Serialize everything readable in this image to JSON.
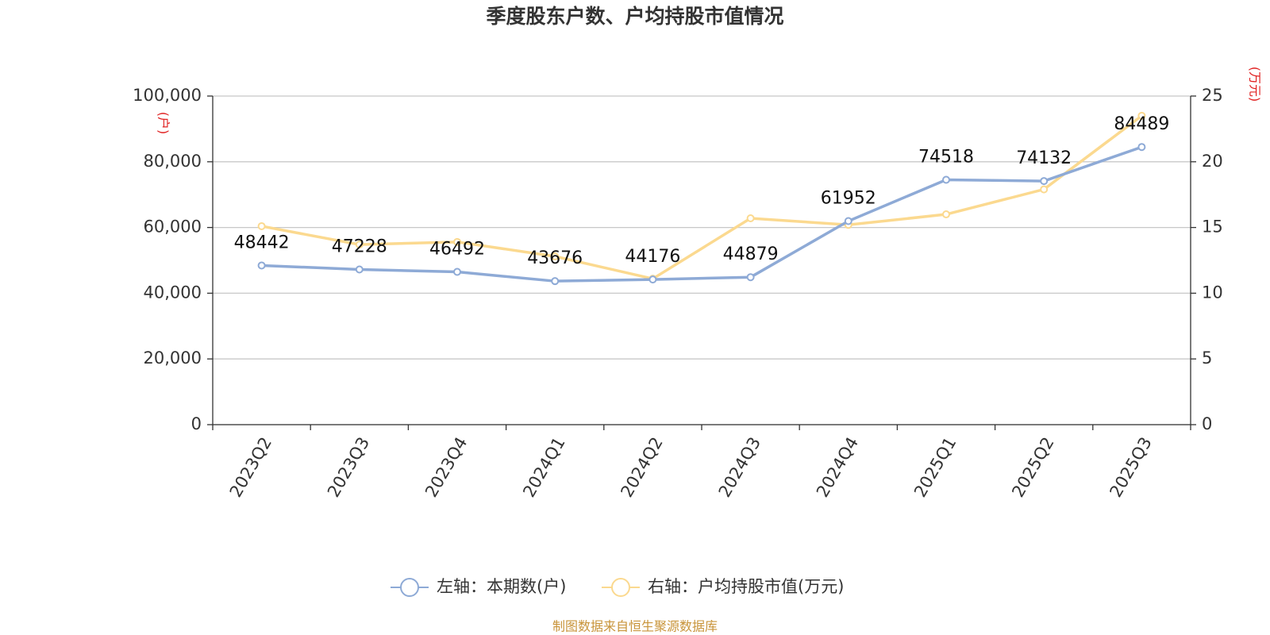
{
  "chart_data": {
    "type": "line",
    "title": "季度股东户数、户均持股市值情况",
    "categories": [
      "2023Q2",
      "2023Q3",
      "2023Q4",
      "2024Q1",
      "2024Q2",
      "2024Q3",
      "2024Q4",
      "2025Q1",
      "2025Q2",
      "2025Q3"
    ],
    "series": [
      {
        "name": "左轴：本期数(户)",
        "color": "#8eaad6",
        "axis": "y",
        "values": [
          48442,
          47228,
          46492,
          43676,
          44176,
          44879,
          61952,
          74518,
          74132,
          84489
        ]
      },
      {
        "name": "右轴：户均持股市值(万元)",
        "color": "#fbd98f",
        "axis": "y2",
        "values": [
          15.1,
          13.7,
          13.9,
          12.8,
          11.1,
          15.7,
          15.2,
          16.0,
          17.9,
          23.5
        ]
      }
    ],
    "ylim": [
      0,
      100000
    ],
    "yticks": [
      0,
      {
        "value": 20000,
        "label": "20,000"
      },
      {
        "value": 40000,
        "label": "40,000"
      },
      {
        "value": 60000,
        "label": "60,000"
      },
      {
        "value": 80000,
        "label": "80,000"
      },
      {
        "value": 100000,
        "label": "100,000"
      }
    ],
    "y2lim": [
      0,
      25
    ],
    "y2ticks": [
      0,
      5,
      10,
      15,
      20,
      25
    ],
    "y_unit": "(户)",
    "y2_unit": "(万元)",
    "grid": true,
    "source": "制图数据来自恒生聚源数据库"
  }
}
